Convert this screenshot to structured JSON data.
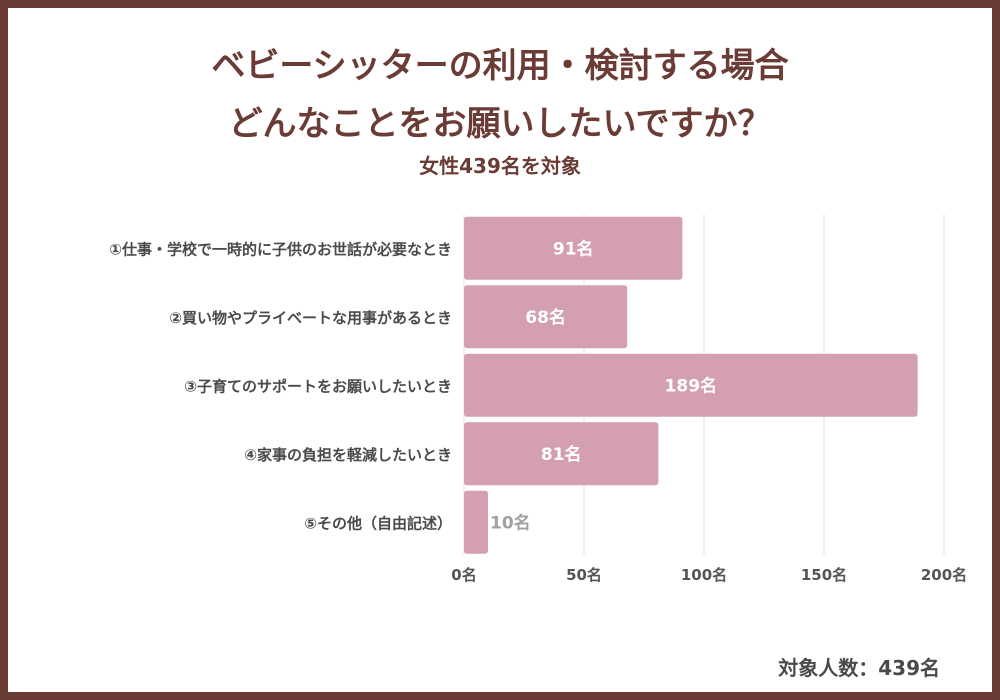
{
  "title_line1": "ベビーシッターの利用・検討する場合",
  "title_line2": "どんなことをお願いしたいですか？",
  "subtitle": "女性439名を対象",
  "footer": "対象人数：439名",
  "colors": {
    "frame": "#6b3b35",
    "bar": "#d4a0b0",
    "bar_label_inside": "#ffffff",
    "bar_label_outside": "#a0a0a0",
    "grid": "#e2e2e2"
  },
  "chart_data": {
    "type": "bar",
    "orientation": "horizontal",
    "categories": [
      "①仕事・学校で一時的に子供のお世話が必要なとき",
      "②買い物やプライベートな用事があるとき",
      "③子育てのサポートをお願いしたいとき",
      "④家事の負担を軽減したいとき",
      "⑤その他（自由記述）"
    ],
    "values": [
      91,
      68,
      189,
      81,
      10
    ],
    "value_labels": [
      "91名",
      "68名",
      "189名",
      "81名",
      "10名"
    ],
    "x_ticks": [
      0,
      50,
      100,
      150,
      200
    ],
    "x_tick_labels": [
      "0名",
      "50名",
      "100名",
      "150名",
      "200名"
    ],
    "xlim": [
      0,
      200
    ],
    "grid": true
  }
}
